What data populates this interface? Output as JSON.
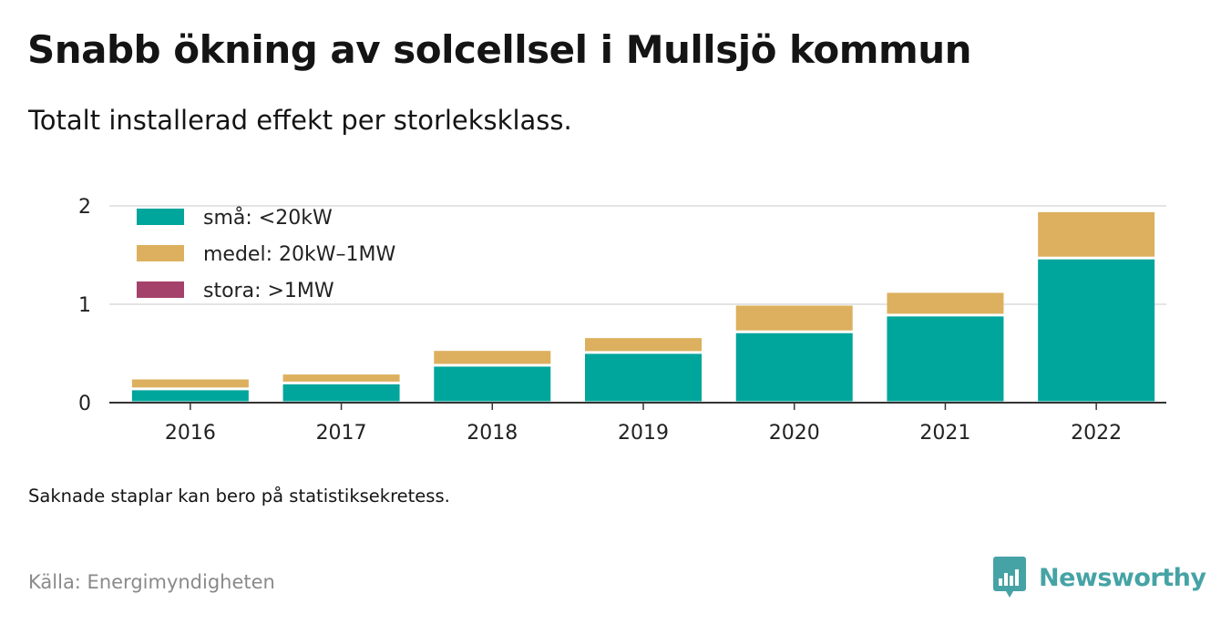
{
  "title": "Snabb ökning av solcellsel i Mullsjö kommun",
  "subtitle": "Totalt installerad effekt per storleksklass.",
  "note": "Saknade staplar kan bero på statistiksekretess.",
  "source": "Källa: Energimyndigheten",
  "brand": {
    "name": "Newsworthy",
    "color": "#46a3a5",
    "logo_icon": "newsworthy-bar-chart-badge-icon"
  },
  "chart_data": {
    "type": "bar",
    "stacked": true,
    "categories": [
      "2016",
      "2017",
      "2018",
      "2019",
      "2020",
      "2021",
      "2022"
    ],
    "series": [
      {
        "name": "små: <20kW",
        "color": "#00a59b",
        "values": [
          0.14,
          0.2,
          0.38,
          0.51,
          0.72,
          0.89,
          1.47
        ]
      },
      {
        "name": "medel: 20kW–1MW",
        "color": "#dcb05e",
        "values": [
          0.11,
          0.1,
          0.16,
          0.16,
          0.28,
          0.24,
          0.48
        ]
      },
      {
        "name": "stora: >1MW",
        "color": "#a4426b",
        "values": [
          0,
          0,
          0,
          0,
          0,
          0,
          0
        ]
      }
    ],
    "ylim": [
      0,
      2
    ],
    "yticks": [
      0,
      1,
      2
    ],
    "xlabel": "",
    "ylabel": "",
    "grid": true,
    "legend_position": "top-left"
  }
}
